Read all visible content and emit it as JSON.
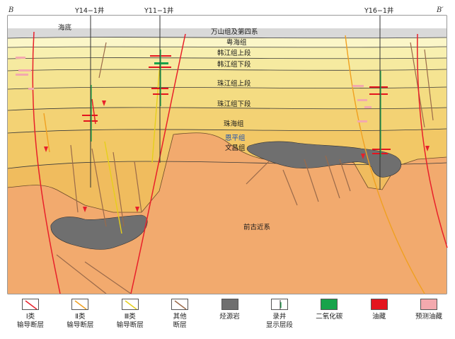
{
  "section": {
    "end_left": "B",
    "end_right": "B′",
    "wells": [
      {
        "id": "y14-1",
        "label": "Y14−1井"
      },
      {
        "id": "y11-1",
        "label": "Y11−1井"
      },
      {
        "id": "y16-1",
        "label": "Y16−1井"
      }
    ],
    "seabed_label": "海底",
    "formations": {
      "wanshan": "万山组及第四系",
      "yuehai": "粤海组",
      "hanjiang_upper": "韩江组上段",
      "hanjiang_lower": "韩江组下段",
      "zhujiang_upper": "珠江组上段",
      "zhujiang_lower": "珠江组下段",
      "zhuhai": "珠海组",
      "enping": "恩平组",
      "wenchang": "文昌组",
      "paleogene_pre": "前古近系"
    }
  },
  "colors": {
    "fault_class1": "#e8202a",
    "fault_class2": "#f0a020",
    "fault_class3": "#f5e23a",
    "fault_other": "#9a6a4a",
    "source_rock": "#6f6f6f",
    "co2": "#17a34a",
    "oil": "#e4141e",
    "predicted_oil": "#f3a9ae"
  },
  "legend": [
    {
      "id": "fault-1",
      "line1": "Ⅰ类",
      "line2": "输导断层"
    },
    {
      "id": "fault-2",
      "line1": "Ⅱ类",
      "line2": "输导断层"
    },
    {
      "id": "fault-3",
      "line1": "Ⅲ类",
      "line2": "输导断层"
    },
    {
      "id": "fault-other",
      "line1": "其他",
      "line2": "断层"
    },
    {
      "id": "source-rock",
      "line1": "烃源岩",
      "line2": ""
    },
    {
      "id": "well",
      "line1": "录井",
      "line2": "显示层段"
    },
    {
      "id": "co2",
      "line1": "二氧化碳",
      "line2": ""
    },
    {
      "id": "oil",
      "line1": "油藏",
      "line2": ""
    },
    {
      "id": "pred-oil",
      "line1": "预测油藏",
      "line2": ""
    }
  ]
}
